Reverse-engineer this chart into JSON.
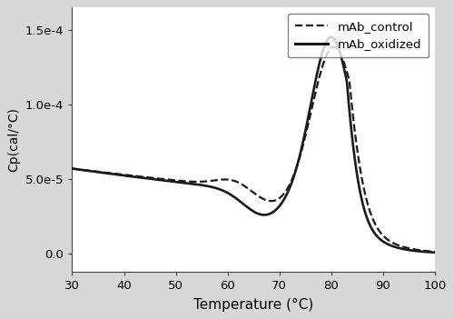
{
  "xlabel": "Temperature (°C)",
  "ylabel": "Cp(cal/°C)",
  "xlim": [
    30,
    100
  ],
  "ylim": [
    -1.2e-05,
    0.000165
  ],
  "yticks": [
    0.0,
    5e-05,
    0.0001,
    0.00015
  ],
  "ytick_labels": [
    "0.0",
    "5.0e-5",
    "1.0e-4",
    "1.5e-4"
  ],
  "xticks": [
    30,
    40,
    50,
    60,
    70,
    80,
    90,
    100
  ],
  "legend_labels": [
    "mAb_control",
    "mAb_oxidized"
  ],
  "line_color": "#1a1a1a",
  "background_color": "#d8d8d8",
  "plot_bg_color": "#ffffff"
}
